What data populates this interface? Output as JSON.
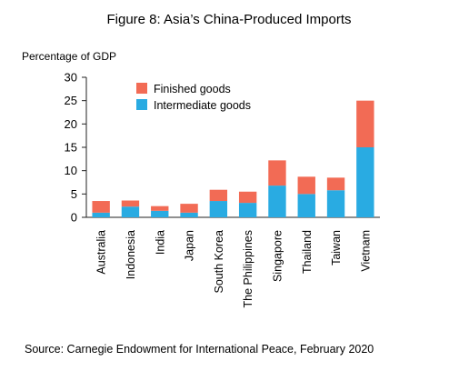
{
  "chart_data": {
    "type": "bar",
    "stacked": true,
    "title": "Figure 8: Asia’s China-Produced Imports",
    "ylabel": "Percentage of GDP",
    "xlabel": "",
    "ylim": [
      0,
      30
    ],
    "yticks": [
      0,
      5,
      10,
      15,
      20,
      25,
      30
    ],
    "grid": false,
    "legend_position": "top-left",
    "categories": [
      "Australia",
      "Indonesia",
      "India",
      "Japan",
      "South Korea",
      "The Philippines",
      "Singapore",
      "Thailand",
      "Taiwan",
      "Vietnam"
    ],
    "series": [
      {
        "name": "Intermediate goods",
        "color": "#29abe2",
        "values": [
          1.0,
          2.3,
          1.4,
          1.0,
          3.5,
          3.1,
          6.8,
          5.0,
          5.8,
          15.0
        ]
      },
      {
        "name": "Finished goods",
        "color": "#f26b55",
        "values": [
          2.5,
          1.3,
          1.0,
          1.9,
          2.4,
          2.4,
          5.4,
          3.7,
          2.7,
          10.0
        ]
      }
    ],
    "legend_order": [
      "Finished goods",
      "Intermediate goods"
    ],
    "source": "Source: Carnegie Endowment for International Peace, February 2020"
  }
}
